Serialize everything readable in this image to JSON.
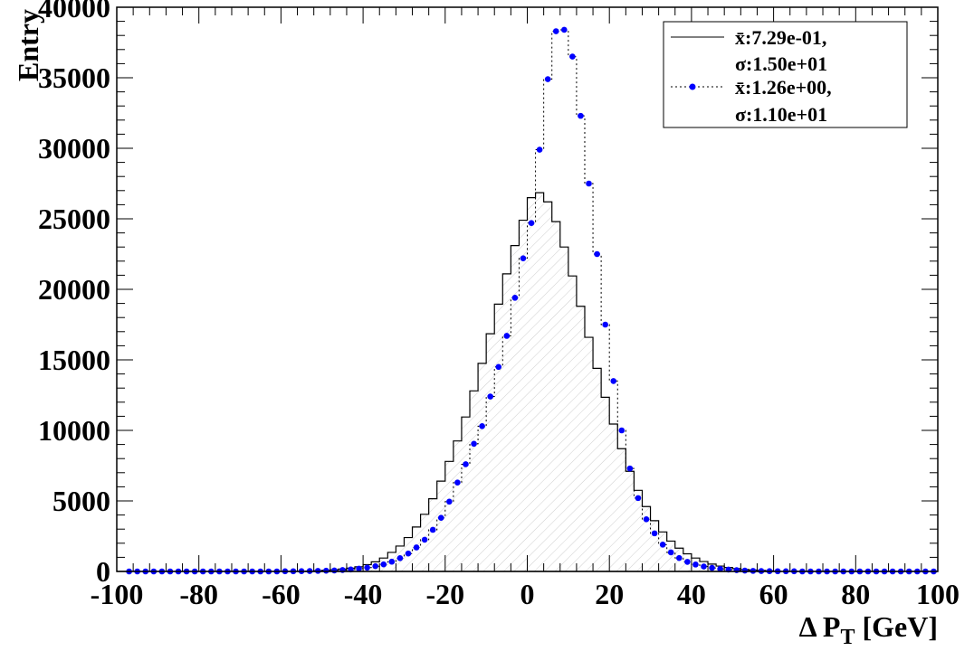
{
  "chart_data": {
    "type": "line",
    "title": "",
    "xlabel": "Δ P",
    "xlabel_sub": "T",
    "xlabel_unit": " [GeV]",
    "ylabel": "Entry",
    "xlim": [
      -100,
      100
    ],
    "ylim": [
      0,
      40000
    ],
    "x_ticks": [
      -100,
      -80,
      -60,
      -40,
      -20,
      0,
      20,
      40,
      60,
      80,
      100
    ],
    "y_ticks": [
      0,
      5000,
      10000,
      15000,
      20000,
      25000,
      30000,
      35000,
      40000
    ],
    "grid": false,
    "legend_position": "top-right",
    "bin_edges": [
      -100,
      -98,
      -96,
      -94,
      -92,
      -90,
      -88,
      -86,
      -84,
      -82,
      -80,
      -78,
      -76,
      -74,
      -72,
      -70,
      -68,
      -66,
      -64,
      -62,
      -60,
      -58,
      -56,
      -54,
      -52,
      -50,
      -48,
      -46,
      -44,
      -42,
      -40,
      -38,
      -36,
      -34,
      -32,
      -30,
      -28,
      -26,
      -24,
      -22,
      -20,
      -18,
      -16,
      -14,
      -12,
      -10,
      -8,
      -6,
      -4,
      -2,
      0,
      2,
      4,
      6,
      8,
      10,
      12,
      14,
      16,
      18,
      20,
      22,
      24,
      26,
      28,
      30,
      32,
      34,
      36,
      38,
      40,
      42,
      44,
      46,
      48,
      50,
      52,
      54,
      56,
      58,
      60,
      62,
      64,
      66,
      68,
      70,
      72,
      74,
      76,
      78,
      80,
      82,
      84,
      86,
      88,
      90,
      92,
      94,
      96,
      98,
      100
    ],
    "series": [
      {
        "style": "histogram",
        "color": "#000000",
        "legend_lines": [
          "x̄:7.29e-01,",
          "σ:1.50e+01"
        ],
        "values": [
          0,
          0,
          0,
          0,
          0,
          0,
          0,
          0,
          0,
          0,
          0,
          0,
          0,
          0,
          0,
          0,
          0,
          0,
          0,
          0,
          0,
          0,
          0,
          0,
          50,
          80,
          120,
          170,
          230,
          330,
          480,
          680,
          950,
          1350,
          1800,
          2400,
          3150,
          4050,
          5150,
          6400,
          7800,
          9250,
          10950,
          12800,
          14750,
          16850,
          18950,
          21100,
          23100,
          24900,
          26500,
          26850,
          26200,
          24800,
          23000,
          20950,
          18800,
          16600,
          14400,
          12350,
          10450,
          8700,
          7100,
          5750,
          4600,
          3600,
          2800,
          2150,
          1650,
          1250,
          950,
          700,
          520,
          380,
          280,
          200,
          140,
          100,
          70,
          50,
          0,
          0,
          0,
          0,
          0,
          0,
          0,
          0,
          0,
          0,
          0,
          0,
          0,
          0,
          0,
          0,
          0,
          0,
          0,
          0
        ]
      },
      {
        "style": "points-dotted",
        "color": "#0000ff",
        "legend_lines": [
          "x̄:1.26e+00,",
          "σ:1.10e+01"
        ],
        "x": [
          -97,
          -95,
          -93,
          -91,
          -89,
          -87,
          -85,
          -83,
          -81,
          -79,
          -77,
          -75,
          -73,
          -71,
          -69,
          -67,
          -65,
          -63,
          -61,
          -59,
          -57,
          -55,
          -53,
          -51,
          -49,
          -47,
          -45,
          -43,
          -41,
          -39,
          -37,
          -35,
          -33,
          -31,
          -29,
          -27,
          -25,
          -23,
          -21,
          -19,
          -17,
          -15,
          -13,
          -11,
          -9,
          -7,
          -5,
          -3,
          -1,
          1,
          3,
          5,
          7,
          9,
          11,
          13,
          15,
          17,
          19,
          21,
          23,
          25,
          27,
          29,
          31,
          33,
          35,
          37,
          39,
          41,
          43,
          45,
          47,
          49,
          51,
          53,
          55,
          57,
          59,
          61,
          63,
          65,
          67,
          69,
          71,
          73,
          75,
          77,
          79,
          81,
          83,
          85,
          87,
          89,
          91,
          93,
          95,
          97,
          99
        ],
        "values": [
          0,
          0,
          0,
          0,
          0,
          0,
          0,
          0,
          0,
          0,
          0,
          0,
          0,
          0,
          0,
          0,
          0,
          0,
          0,
          10,
          15,
          20,
          30,
          40,
          50,
          70,
          100,
          140,
          200,
          270,
          370,
          500,
          690,
          940,
          1270,
          1700,
          2250,
          2950,
          3800,
          4950,
          6300,
          7600,
          9050,
          10300,
          12400,
          14500,
          16700,
          19400,
          22200,
          24700,
          29900,
          34900,
          38300,
          38400,
          36500,
          32300,
          27500,
          22500,
          17500,
          13500,
          10000,
          7300,
          5200,
          3700,
          2700,
          1900,
          1350,
          950,
          680,
          490,
          350,
          250,
          180,
          130,
          90,
          60,
          40,
          30,
          20,
          15,
          10,
          10,
          0,
          0,
          0,
          0,
          0,
          0,
          0,
          0,
          0,
          0,
          0,
          0,
          0,
          0,
          0,
          0,
          0
        ]
      }
    ]
  }
}
